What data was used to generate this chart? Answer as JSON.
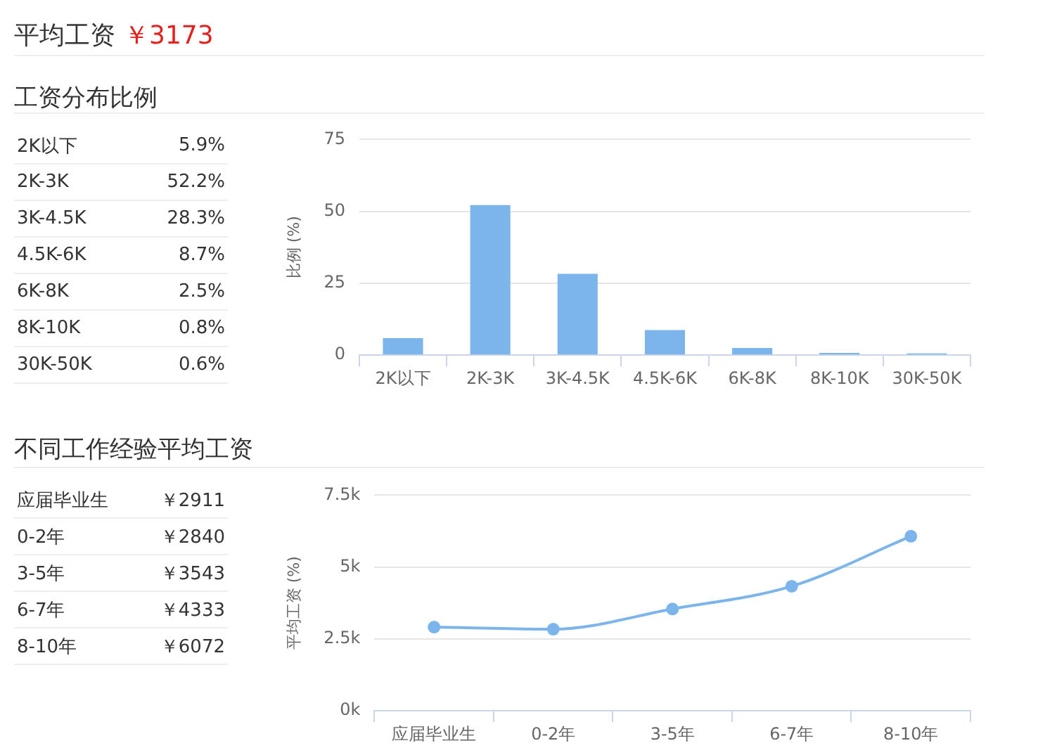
{
  "chart_data": [
    {
      "type": "other",
      "title": "平均工资",
      "annotations": [
        "￥3173"
      ]
    },
    {
      "type": "other",
      "title": "工资分布比例",
      "annotations": [
        "2K以下",
        "5.9%",
        "2K-3K",
        "52.2%",
        "3K-4.5K",
        "28.3%",
        "4.5K-6K",
        "8.7%",
        "6K-8K",
        "2.5%",
        "8K-10K",
        "0.8%",
        "30K-50K",
        "0.6%"
      ]
    },
    {
      "type": "bar",
      "categories": [
        "2K以下",
        "2K-3K",
        "3K-4.5K",
        "4.5K-6K",
        "6K-8K",
        "8K-10K",
        "30K-50K"
      ],
      "values": [
        5.9,
        52.2,
        28.3,
        8.7,
        2.5,
        0.8,
        0.6
      ],
      "color": "#7cb5ec",
      "ylabel": "比例 (%)",
      "ylim": [
        0,
        75
      ],
      "yticks": [
        0,
        25,
        50,
        75
      ],
      "grid": "y"
    },
    {
      "type": "other",
      "title": "不同工作经验平均工资",
      "annotations": [
        "应届毕业生",
        "￥2911",
        "0-2年",
        "￥2840",
        "3-5年",
        "￥3543",
        "6-7年",
        "￥4333",
        "8-10年",
        "￥6072"
      ]
    },
    {
      "type": "line",
      "categories": [
        "应届毕业生",
        "0-2年",
        "3-5年",
        "6-7年",
        "8-10年"
      ],
      "values": [
        2911,
        2840,
        3543,
        4333,
        6072
      ],
      "color": "#7cb5ec",
      "ylabel": "平均工资 (%)",
      "ylim": [
        0,
        7500
      ],
      "yticks": [
        {
          "value": 0,
          "label": "0k"
        },
        {
          "value": 2500,
          "label": "2.5k"
        },
        {
          "value": 5000,
          "label": "5k"
        },
        {
          "value": 7500,
          "label": "7.5k"
        }
      ],
      "grid": "y",
      "marker": "circle"
    }
  ]
}
